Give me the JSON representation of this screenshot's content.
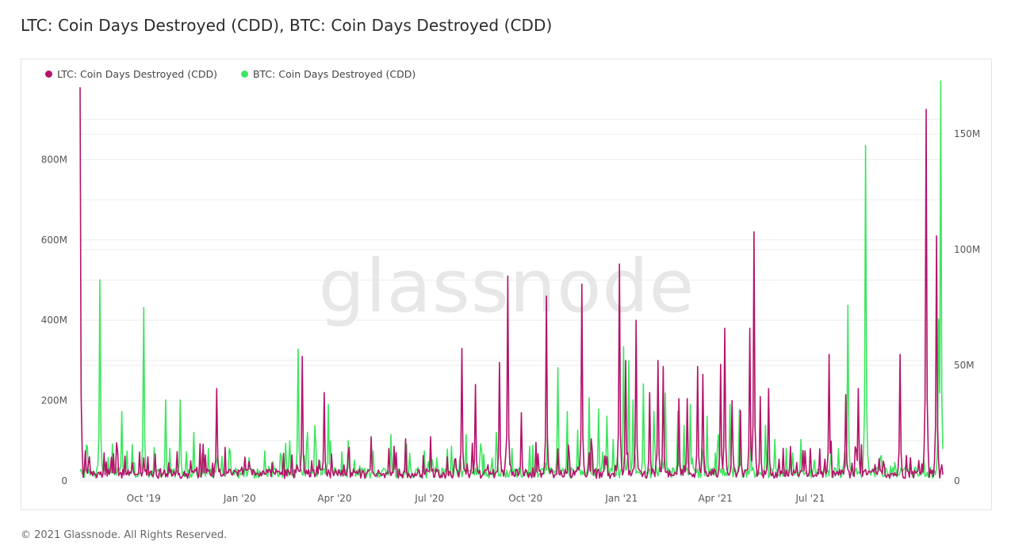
{
  "header": {
    "title": "LTC: Coin Days Destroyed (CDD), BTC: Coin Days Destroyed (CDD)"
  },
  "footer": {
    "copyright": "© 2021 Glassnode. All Rights Reserved."
  },
  "watermark": "glassnode",
  "colors": {
    "ltc": "#b5136a",
    "btc": "#3ee65f",
    "grid": "#eeeeee"
  },
  "chart_data": {
    "type": "line",
    "legend_position": "top-left",
    "grid": true,
    "x_ticks": [
      "Oct '19",
      "Jan '20",
      "Apr '20",
      "Jul '20",
      "Oct '20",
      "Jan '21",
      "Apr '21",
      "Jul '21"
    ],
    "x_range": [
      "2019-08-01",
      "2021-11-05"
    ],
    "y_left": {
      "ticks": [
        "0",
        "200M",
        "400M",
        "600M",
        "800M"
      ],
      "tick_values": [
        0,
        200,
        400,
        600,
        800
      ],
      "range": [
        0,
        990
      ],
      "unit": "M"
    },
    "y_right": {
      "ticks": [
        "0",
        "50M",
        "100M",
        "150M"
      ],
      "tick_values": [
        0,
        50,
        100,
        150
      ],
      "range": [
        0,
        172
      ],
      "unit": "M"
    },
    "series": [
      {
        "name": "LTC: Coin Days Destroyed (CDD)",
        "axis": "left",
        "baseline": 18,
        "spikes": [
          [
            "2019-08-01",
            980
          ],
          [
            "2019-08-10",
            60
          ],
          [
            "2019-08-24",
            70
          ],
          [
            "2019-09-05",
            95
          ],
          [
            "2019-09-20",
            45
          ],
          [
            "2019-10-05",
            60
          ],
          [
            "2019-10-25",
            45
          ],
          [
            "2019-11-15",
            50
          ],
          [
            "2019-11-29",
            65
          ],
          [
            "2019-12-10",
            230
          ],
          [
            "2020-01-03",
            35
          ],
          [
            "2020-02-01",
            45
          ],
          [
            "2020-02-20",
            65
          ],
          [
            "2020-03-01",
            310
          ],
          [
            "2020-03-10",
            50
          ],
          [
            "2020-03-22",
            220
          ],
          [
            "2020-04-10",
            40
          ],
          [
            "2020-05-06",
            110
          ],
          [
            "2020-06-08",
            105
          ],
          [
            "2020-07-02",
            110
          ],
          [
            "2020-07-18",
            60
          ],
          [
            "2020-08-01",
            330
          ],
          [
            "2020-08-14",
            240
          ],
          [
            "2020-09-06",
            295
          ],
          [
            "2020-09-14",
            510
          ],
          [
            "2020-09-27",
            170
          ],
          [
            "2020-10-21",
            460
          ],
          [
            "2020-11-01",
            80
          ],
          [
            "2020-11-11",
            90
          ],
          [
            "2020-11-24",
            490
          ],
          [
            "2020-12-03",
            105
          ],
          [
            "2020-12-18",
            60
          ],
          [
            "2020-12-30",
            540
          ],
          [
            "2021-01-05",
            300
          ],
          [
            "2021-01-15",
            400
          ],
          [
            "2021-01-28",
            220
          ],
          [
            "2021-02-05",
            300
          ],
          [
            "2021-02-10",
            285
          ],
          [
            "2021-02-25",
            205
          ],
          [
            "2021-03-05",
            205
          ],
          [
            "2021-03-15",
            285
          ],
          [
            "2021-03-20",
            265
          ],
          [
            "2021-04-06",
            290
          ],
          [
            "2021-04-10",
            380
          ],
          [
            "2021-04-17",
            200
          ],
          [
            "2021-04-25",
            175
          ],
          [
            "2021-05-04",
            380
          ],
          [
            "2021-05-08",
            620
          ],
          [
            "2021-05-14",
            210
          ],
          [
            "2021-05-22",
            230
          ],
          [
            "2021-06-26",
            75
          ],
          [
            "2021-07-10",
            80
          ],
          [
            "2021-07-19",
            315
          ],
          [
            "2021-08-04",
            215
          ],
          [
            "2021-08-16",
            230
          ],
          [
            "2021-09-05",
            55
          ],
          [
            "2021-09-25",
            315
          ],
          [
            "2021-10-20",
            925
          ],
          [
            "2021-10-30",
            610
          ],
          [
            "2021-11-04",
            40
          ]
        ]
      },
      {
        "name": "BTC: Coin Days Destroyed (CDD)",
        "axis": "right",
        "baseline": 3.5,
        "spikes": [
          [
            "2019-08-08",
            15
          ],
          [
            "2019-08-20",
            87
          ],
          [
            "2019-09-01",
            16
          ],
          [
            "2019-09-10",
            30
          ],
          [
            "2019-09-22",
            8
          ],
          [
            "2019-10-01",
            75
          ],
          [
            "2019-10-12",
            6
          ],
          [
            "2019-10-22",
            35
          ],
          [
            "2019-11-05",
            35
          ],
          [
            "2019-11-18",
            21
          ],
          [
            "2019-12-02",
            14
          ],
          [
            "2019-12-22",
            11
          ],
          [
            "2020-01-10",
            10
          ],
          [
            "2020-01-25",
            13
          ],
          [
            "2020-02-09",
            12
          ],
          [
            "2020-02-26",
            57
          ],
          [
            "2020-03-06",
            21
          ],
          [
            "2020-03-13",
            24
          ],
          [
            "2020-03-26",
            33
          ],
          [
            "2020-04-08",
            8
          ],
          [
            "2020-04-20",
            9
          ],
          [
            "2020-05-08",
            13
          ],
          [
            "2020-05-25",
            20
          ],
          [
            "2020-06-12",
            12
          ],
          [
            "2020-06-26",
            13
          ],
          [
            "2020-07-08",
            10
          ],
          [
            "2020-07-22",
            15
          ],
          [
            "2020-08-05",
            20
          ],
          [
            "2020-08-20",
            13
          ],
          [
            "2020-09-03",
            21
          ],
          [
            "2020-09-18",
            14
          ],
          [
            "2020-10-05",
            15
          ],
          [
            "2020-10-22",
            19
          ],
          [
            "2020-11-01",
            49
          ],
          [
            "2020-11-10",
            30
          ],
          [
            "2020-11-20",
            22
          ],
          [
            "2020-12-01",
            36
          ],
          [
            "2020-12-10",
            31
          ],
          [
            "2020-12-18",
            28
          ],
          [
            "2020-12-24",
            18
          ],
          [
            "2021-01-03",
            58
          ],
          [
            "2021-01-08",
            52
          ],
          [
            "2021-01-12",
            35
          ],
          [
            "2021-01-22",
            42
          ],
          [
            "2021-02-01",
            30
          ],
          [
            "2021-02-12",
            38
          ],
          [
            "2021-02-24",
            30
          ],
          [
            "2021-03-02",
            24
          ],
          [
            "2021-03-08",
            33
          ],
          [
            "2021-03-24",
            28
          ],
          [
            "2021-04-04",
            20
          ],
          [
            "2021-04-15",
            33
          ],
          [
            "2021-04-24",
            31
          ],
          [
            "2021-05-05",
            20
          ],
          [
            "2021-05-19",
            24
          ],
          [
            "2021-05-28",
            18
          ],
          [
            "2021-06-08",
            14
          ],
          [
            "2021-06-22",
            18
          ],
          [
            "2021-07-05",
            9
          ],
          [
            "2021-07-21",
            12
          ],
          [
            "2021-07-28",
            14
          ],
          [
            "2021-08-06",
            76
          ],
          [
            "2021-08-23",
            145
          ],
          [
            "2021-09-07",
            11
          ],
          [
            "2021-09-20",
            8
          ],
          [
            "2021-10-05",
            10
          ],
          [
            "2021-10-18",
            9
          ],
          [
            "2021-11-01",
            70
          ],
          [
            "2021-11-03",
            173
          ]
        ]
      }
    ]
  }
}
